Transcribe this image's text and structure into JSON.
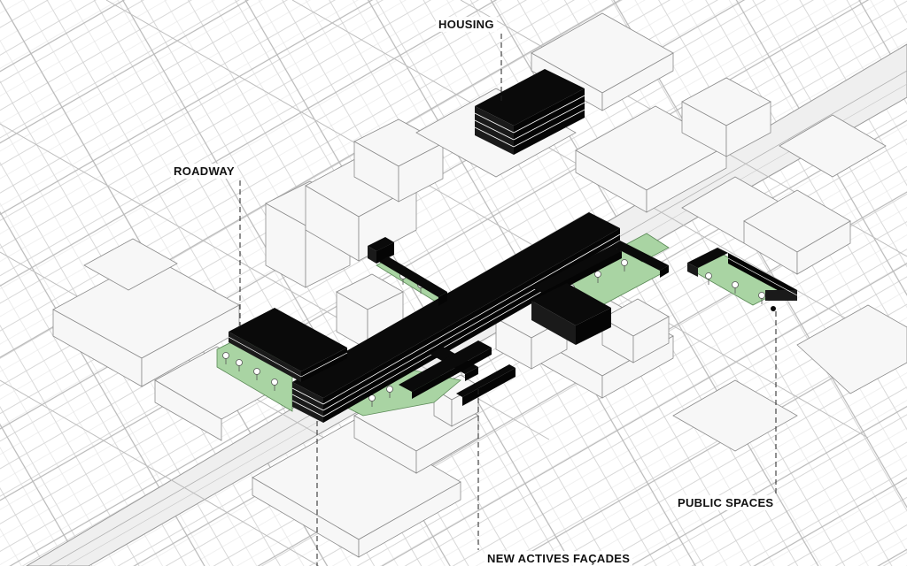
{
  "labels": {
    "housing": "HOUSING",
    "roadway": "ROADWAY",
    "public_spaces": "PUBLIC SPACES",
    "new_facades": "NEW ACTIVES FAÇADES"
  },
  "colors": {
    "background": "#ffffff",
    "city_lines": "#c4c4c4",
    "street_band": "#ececec",
    "context_building": "#f6f6f6",
    "context_outline": "#8a8a8a",
    "intervention_black": "#0a0a0a",
    "floor_lines": "#ffffff",
    "green_space": "#a9d4a3",
    "green_outline": "#5c8a58",
    "leader_line": "#222222",
    "label_text": "#111111"
  }
}
